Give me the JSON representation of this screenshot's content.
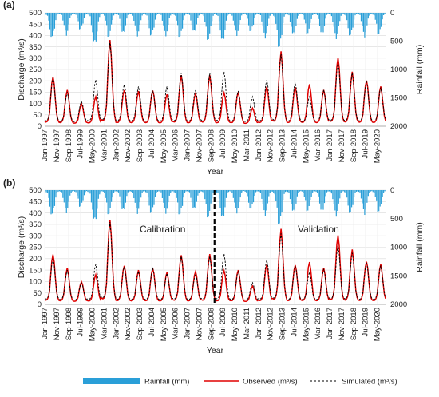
{
  "chart_data": [
    {
      "panel_label": "(a)",
      "type": "line",
      "xlabel": "Year",
      "ylabel": "Discharge (m³/s)",
      "y2label": "Rainfall (mm)",
      "ylim": [
        0,
        500
      ],
      "y2lim": [
        0,
        2000
      ],
      "y2_inverted": true,
      "yticks": [
        0,
        50,
        100,
        150,
        200,
        250,
        300,
        350,
        400,
        450,
        500
      ],
      "y2ticks": [
        0,
        500,
        1000,
        1500,
        2000
      ],
      "xtick_labels": [
        "Jan-1997",
        "Nov-1997",
        "Sep-1998",
        "Jul-1999",
        "May-2000",
        "Mar-2001",
        "Jan-2002",
        "Nov-2002",
        "Sep-2003",
        "Jul-2004",
        "May-2005",
        "Mar-2006",
        "Jan-2007",
        "Nov-2007",
        "Sep-2008",
        "Jul-2009",
        "May-2010",
        "Mar-2011",
        "Jan-2012",
        "Nov-2012",
        "Sep-2013",
        "Jul-2014",
        "May-2015",
        "Mar-2016",
        "Jan-2017",
        "Nov-2017",
        "Sep-2018",
        "Jul-2019",
        "May-2020"
      ],
      "x_range": [
        "1997-01",
        "2020-12"
      ],
      "annual_peaks": {
        "years": [
          1997,
          1998,
          1999,
          2000,
          2001,
          2002,
          2003,
          2004,
          2005,
          2006,
          2007,
          2008,
          2009,
          2010,
          2011,
          2012,
          2013,
          2014,
          2015,
          2016,
          2017,
          2018,
          2019,
          2020
        ],
        "observed": [
          220,
          160,
          100,
          130,
          380,
          160,
          155,
          160,
          140,
          225,
          145,
          225,
          150,
          150,
          80,
          175,
          330,
          175,
          185,
          160,
          305,
          240,
          205,
          175
        ],
        "simulated": [
          215,
          150,
          110,
          205,
          375,
          185,
          175,
          160,
          175,
          235,
          160,
          235,
          245,
          155,
          130,
          205,
          320,
          195,
          130,
          160,
          285,
          235,
          200,
          170
        ]
      },
      "rainfall_peaks_mm": [
        500,
        420,
        330,
        640,
        460,
        410,
        450,
        470,
        430,
        480,
        400,
        520,
        560,
        440,
        380,
        470,
        680,
        460,
        400,
        420,
        500,
        470,
        450,
        430
      ],
      "grid": true
    },
    {
      "panel_label": "(b)",
      "type": "line",
      "xlabel": "Year",
      "ylabel": "Discharge (m³/s)",
      "y2label": "Rainfall (mm)",
      "ylim": [
        0,
        500
      ],
      "y2lim": [
        0,
        2000
      ],
      "y2_inverted": true,
      "yticks": [
        0,
        50,
        100,
        150,
        200,
        250,
        300,
        350,
        400,
        450,
        500
      ],
      "y2ticks": [
        0,
        500,
        1000,
        1500,
        2000
      ],
      "xtick_labels": [
        "Jan-1997",
        "Nov-1997",
        "Sep-1998",
        "Jul-1999",
        "May-2000",
        "Mar-2001",
        "Jan-2002",
        "Nov-2002",
        "Sep-2003",
        "Jul-2004",
        "May-2005",
        "Mar-2006",
        "Jan-2007",
        "Nov-2007",
        "Sep-2008",
        "Jul-2009",
        "May-2010",
        "Mar-2011",
        "Jan-2012",
        "Nov-2012",
        "Sep-2013",
        "Jul-2014",
        "May-2015",
        "Mar-2016",
        "Jan-2017",
        "Nov-2017",
        "Sep-2018",
        "Jul-2019",
        "May-2020"
      ],
      "x_range": [
        "1997-01",
        "2020-12"
      ],
      "annotations": [
        "Calibration",
        "Validation"
      ],
      "split_date": "2008-12",
      "annual_peaks": {
        "years": [
          1997,
          1998,
          1999,
          2000,
          2001,
          2002,
          2003,
          2004,
          2005,
          2006,
          2007,
          2008,
          2009,
          2010,
          2011,
          2012,
          2013,
          2014,
          2015,
          2016,
          2017,
          2018,
          2019,
          2020
        ],
        "observed": [
          220,
          160,
          100,
          130,
          370,
          170,
          150,
          160,
          140,
          215,
          145,
          220,
          150,
          150,
          80,
          175,
          330,
          175,
          185,
          160,
          305,
          240,
          190,
          175
        ],
        "simulated": [
          205,
          150,
          95,
          175,
          360,
          165,
          145,
          160,
          135,
          210,
          135,
          210,
          225,
          145,
          95,
          195,
          310,
          170,
          140,
          155,
          260,
          225,
          185,
          170
        ]
      },
      "rainfall_peaks_mm": [
        500,
        420,
        330,
        640,
        460,
        410,
        450,
        470,
        430,
        480,
        400,
        520,
        560,
        440,
        380,
        470,
        680,
        460,
        400,
        420,
        500,
        470,
        450,
        430
      ],
      "grid": true
    }
  ],
  "legend": {
    "rainfall": "Rainfall (mm)",
    "observed": "Observed (m³/s)",
    "simulated": "Simulated (m³/s)"
  },
  "colors": {
    "rainfall": "#2a9fd8",
    "observed": "#e00000",
    "simulated": "#000000",
    "grid": "#d9d9d9"
  }
}
